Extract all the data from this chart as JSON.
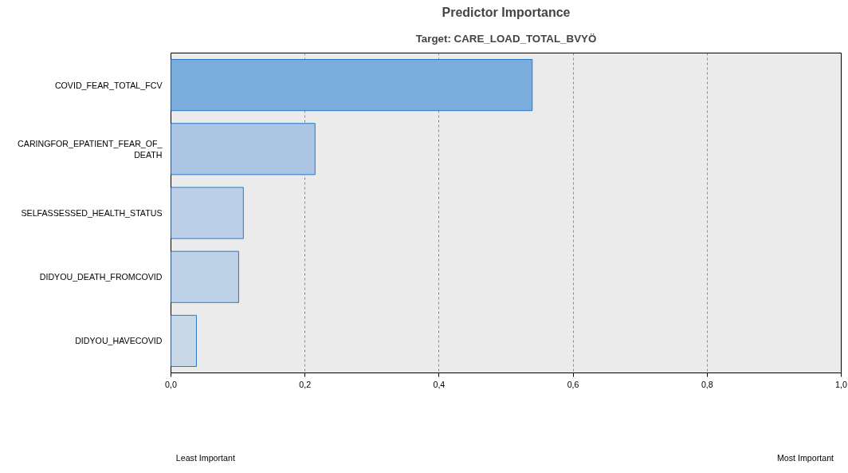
{
  "chart_data": {
    "type": "bar",
    "orientation": "horizontal",
    "title": "Predictor Importance",
    "subtitle": "Target: CARE_LOAD_TOTAL_BVYÖ",
    "categories": [
      "COVID_FEAR_TOTAL_FCV",
      "CARINGFOR_EPATIENT_FEAR_OF_DEATH",
      "SELFASSESSED_HEALTH_STATUS",
      "DIDYOU_DEATH_FROMCOVID",
      "DIDYOU_HAVECOVID"
    ],
    "values": [
      0.539,
      0.215,
      0.108,
      0.101,
      0.038
    ],
    "colors": [
      "#7aaddc",
      "#abc6e2",
      "#bcd1e8",
      "#bed2e7",
      "#c8d8e7"
    ],
    "xlim": [
      0,
      1
    ],
    "xticks": [
      {
        "value": 0,
        "label": "0,0"
      },
      {
        "value": 0.2,
        "label": "0,2"
      },
      {
        "value": 0.4,
        "label": "0,4"
      },
      {
        "value": 0.6,
        "label": "0,6"
      },
      {
        "value": 0.8,
        "label": "0,8"
      },
      {
        "value": 1,
        "label": "1,0"
      }
    ],
    "grid": "x",
    "annotations": [
      "Least Important",
      "Most Important"
    ]
  }
}
